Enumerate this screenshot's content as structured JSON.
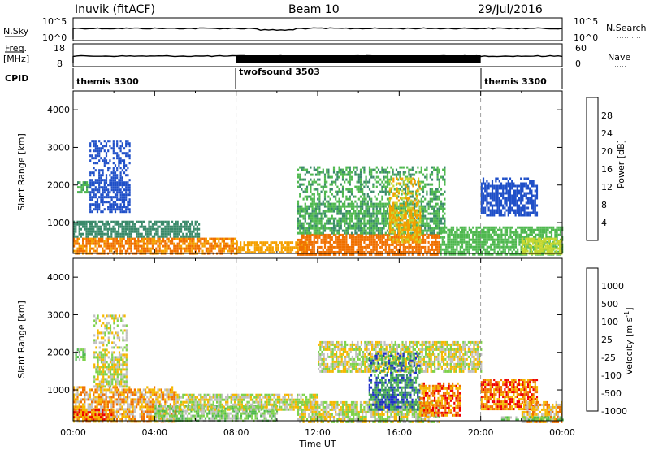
{
  "header": {
    "station": "Inuvik (fitACF)",
    "beam": "Beam 10",
    "date": "29/Jul/2016"
  },
  "top_panels": {
    "nsky_label": "N.Sky",
    "nsky_ticks": [
      "10^5",
      "10^0"
    ],
    "nsearch_label": "N.Search",
    "nsearch_ticks": [
      "10^5",
      "10^0"
    ],
    "freq_label_1": "Freq.",
    "freq_label_2": "[MHz]",
    "freq_ticks": [
      "18",
      "8"
    ],
    "nave_label": "Nave",
    "nave_ticks": [
      "60",
      "0"
    ],
    "cpid_label": "CPID",
    "cpid_segments": [
      {
        "label": "themis 3300",
        "start_hour": 0,
        "end_hour": 8
      },
      {
        "label": "twofsound 3503",
        "start_hour": 8,
        "end_hour": 20
      },
      {
        "label": "themis 3300",
        "start_hour": 20,
        "end_hour": 24
      }
    ]
  },
  "chart_data": [
    {
      "type": "heatmap",
      "name": "power",
      "ylabel": "Slant Range [km]",
      "y_ticks": [
        "1000",
        "2000",
        "3000",
        "4000"
      ],
      "y_tick_values": [
        1000,
        2000,
        3000,
        4000
      ],
      "ylim": [
        180,
        4500
      ],
      "xlim_hours": [
        0,
        24
      ],
      "colorbar_label": "Power [dB]",
      "colorbar_ticks": [
        "4",
        "8",
        "12",
        "16",
        "20",
        "24",
        "28"
      ],
      "colorbar_values": [
        4,
        8,
        12,
        16,
        20,
        24,
        28
      ],
      "colorbar_range": [
        0,
        32
      ],
      "colors": [
        "#0000ee",
        "#2050c8",
        "#3a8a6a",
        "#4fb84f",
        "#c8d830",
        "#f5a000",
        "#f07000",
        "#ee0000"
      ],
      "regions": [
        {
          "t0": 0.0,
          "t1": 8.0,
          "r0": 180,
          "r1": 600,
          "level": 24
        },
        {
          "t0": 0.0,
          "t1": 6.2,
          "r0": 600,
          "r1": 1050,
          "level": 10
        },
        {
          "t0": 0.8,
          "t1": 2.8,
          "r0": 1300,
          "r1": 3200,
          "level": 6
        },
        {
          "t0": 0.2,
          "t1": 0.8,
          "r0": 1800,
          "r1": 2100,
          "level": 12
        },
        {
          "t0": 8.0,
          "t1": 11.5,
          "r0": 180,
          "r1": 500,
          "level": 22
        },
        {
          "t0": 11.0,
          "t1": 18.0,
          "r0": 180,
          "r1": 700,
          "level": 26
        },
        {
          "t0": 11.0,
          "t1": 18.2,
          "r0": 700,
          "r1": 2500,
          "level": 12
        },
        {
          "t0": 15.5,
          "t1": 17.0,
          "r0": 500,
          "r1": 2200,
          "level": 20
        },
        {
          "t0": 18.0,
          "t1": 24.0,
          "r0": 180,
          "r1": 900,
          "level": 14
        },
        {
          "t0": 20.0,
          "t1": 22.8,
          "r0": 1200,
          "r1": 2200,
          "level": 6
        },
        {
          "t0": 22.0,
          "t1": 24.0,
          "r0": 180,
          "r1": 600,
          "level": 18
        }
      ]
    },
    {
      "type": "heatmap",
      "name": "velocity",
      "ylabel": "Slant Range [km]",
      "y_ticks": [
        "1000",
        "2000",
        "3000",
        "4000"
      ],
      "y_tick_values": [
        1000,
        2000,
        3000,
        4000
      ],
      "ylim": [
        180,
        4500
      ],
      "xlim_hours": [
        0,
        24
      ],
      "xlabel": "Time UT",
      "x_ticks": [
        "00:00",
        "04:00",
        "08:00",
        "12:00",
        "16:00",
        "20:00",
        "00:00"
      ],
      "x_tick_hours": [
        0,
        4,
        8,
        12,
        16,
        20,
        24
      ],
      "colorbar_label": "Velocity [m s^-1]",
      "colorbar_ticks": [
        "1000",
        "500",
        "100",
        "25",
        "-25",
        "-100",
        "-500",
        "-1000"
      ],
      "colors": [
        "#2030c8",
        "#3a8a6a",
        "#4fb84f",
        "#7ed24a",
        "#c0c0c0",
        "#f5b800",
        "#f07000",
        "#ee0000"
      ],
      "regions": [
        {
          "t0": 0.0,
          "t1": 5.0,
          "r0": 180,
          "r1": 1100,
          "level": 5
        },
        {
          "t0": 0.0,
          "t1": 2.0,
          "r0": 180,
          "r1": 500,
          "level": 6
        },
        {
          "t0": 0.1,
          "t1": 0.6,
          "r0": 1800,
          "r1": 2100,
          "level": 3
        },
        {
          "t0": 1.0,
          "t1": 2.6,
          "r0": 1100,
          "r1": 3000,
          "level": 4
        },
        {
          "t0": 4.0,
          "t1": 10.0,
          "r0": 180,
          "r1": 600,
          "level": 3
        },
        {
          "t0": 5.0,
          "t1": 12.0,
          "r0": 500,
          "r1": 900,
          "level": 4
        },
        {
          "t0": 11.0,
          "t1": 18.0,
          "r0": 180,
          "r1": 700,
          "level": 4
        },
        {
          "t0": 12.0,
          "t1": 20.0,
          "r0": 1500,
          "r1": 2300,
          "level": 4
        },
        {
          "t0": 14.5,
          "t1": 17.0,
          "r0": 500,
          "r1": 2000,
          "level": 1
        },
        {
          "t0": 17.0,
          "t1": 19.0,
          "r0": 300,
          "r1": 1200,
          "level": 6
        },
        {
          "t0": 20.0,
          "t1": 22.8,
          "r0": 500,
          "r1": 1300,
          "level": 6
        },
        {
          "t0": 22.0,
          "t1": 24.0,
          "r0": 180,
          "r1": 700,
          "level": 5
        },
        {
          "t0": 21.0,
          "t1": 24.0,
          "r0": 180,
          "r1": 300,
          "level": 3
        }
      ]
    }
  ]
}
